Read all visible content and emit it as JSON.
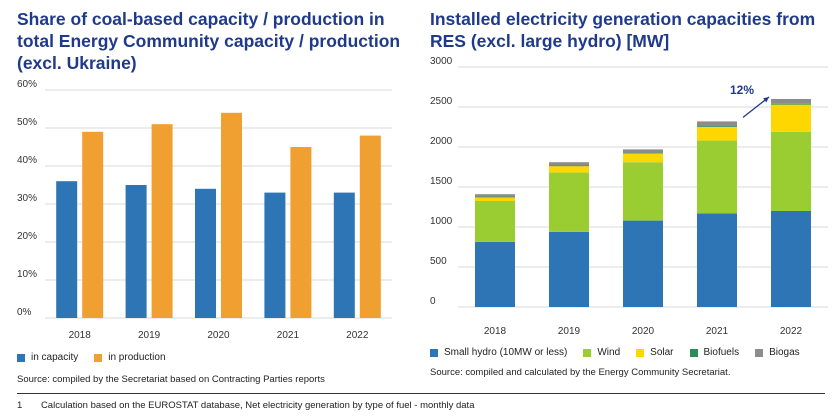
{
  "chart_data": [
    {
      "type": "bar",
      "title": "Share of coal-based capacity / production in total Energy Community capacity / production (excl. Ukraine)",
      "categories": [
        "2018",
        "2019",
        "2020",
        "2021",
        "2022"
      ],
      "series": [
        {
          "name": "in capacity",
          "color": "#2e75b6",
          "values": [
            36,
            35,
            34,
            33,
            33
          ]
        },
        {
          "name": "in production",
          "color": "#f0a030",
          "values": [
            49,
            51,
            54,
            45,
            48
          ]
        }
      ],
      "yticks": [
        "0%",
        "10%",
        "20%",
        "30%",
        "40%",
        "50%",
        "60%"
      ],
      "ylim": [
        0,
        60
      ],
      "grid": true,
      "legend": "bottom-left",
      "source": "Source: compiled by the Secretariat based on Contracting Parties reports"
    },
    {
      "type": "bar",
      "stacked": true,
      "title": "Installed electricity generation capacities from RES (excl. large hydro) [MW]",
      "categories": [
        "2018",
        "2019",
        "2020",
        "2021",
        "2022"
      ],
      "series": [
        {
          "name": "Small hydro (10MW or less)",
          "color": "#2e75b6",
          "values": [
            815,
            940,
            1080,
            1170,
            1200
          ]
        },
        {
          "name": "Wind",
          "color": "#9acd32",
          "values": [
            510,
            740,
            730,
            910,
            990
          ]
        },
        {
          "name": "Solar",
          "color": "#ffd700",
          "values": [
            45,
            80,
            110,
            170,
            340
          ]
        },
        {
          "name": "Biofuels",
          "color": "#2e8b57",
          "values": [
            10,
            10,
            10,
            10,
            10
          ]
        },
        {
          "name": "Biogas",
          "color": "#8c8c8c",
          "values": [
            30,
            40,
            40,
            60,
            60
          ]
        }
      ],
      "yticks": [
        "0",
        "500",
        "1000",
        "1500",
        "2000",
        "2500",
        "3000"
      ],
      "ylim": [
        0,
        3000
      ],
      "grid": true,
      "annotation": "12%",
      "legend": "bottom-left",
      "source": "Source: compiled and calculated by the Energy Community Secretariat."
    }
  ],
  "footnote": {
    "number": "1",
    "text": "Calculation based on the EUROSTAT database, Net electricity generation by type of fuel - monthly data"
  }
}
